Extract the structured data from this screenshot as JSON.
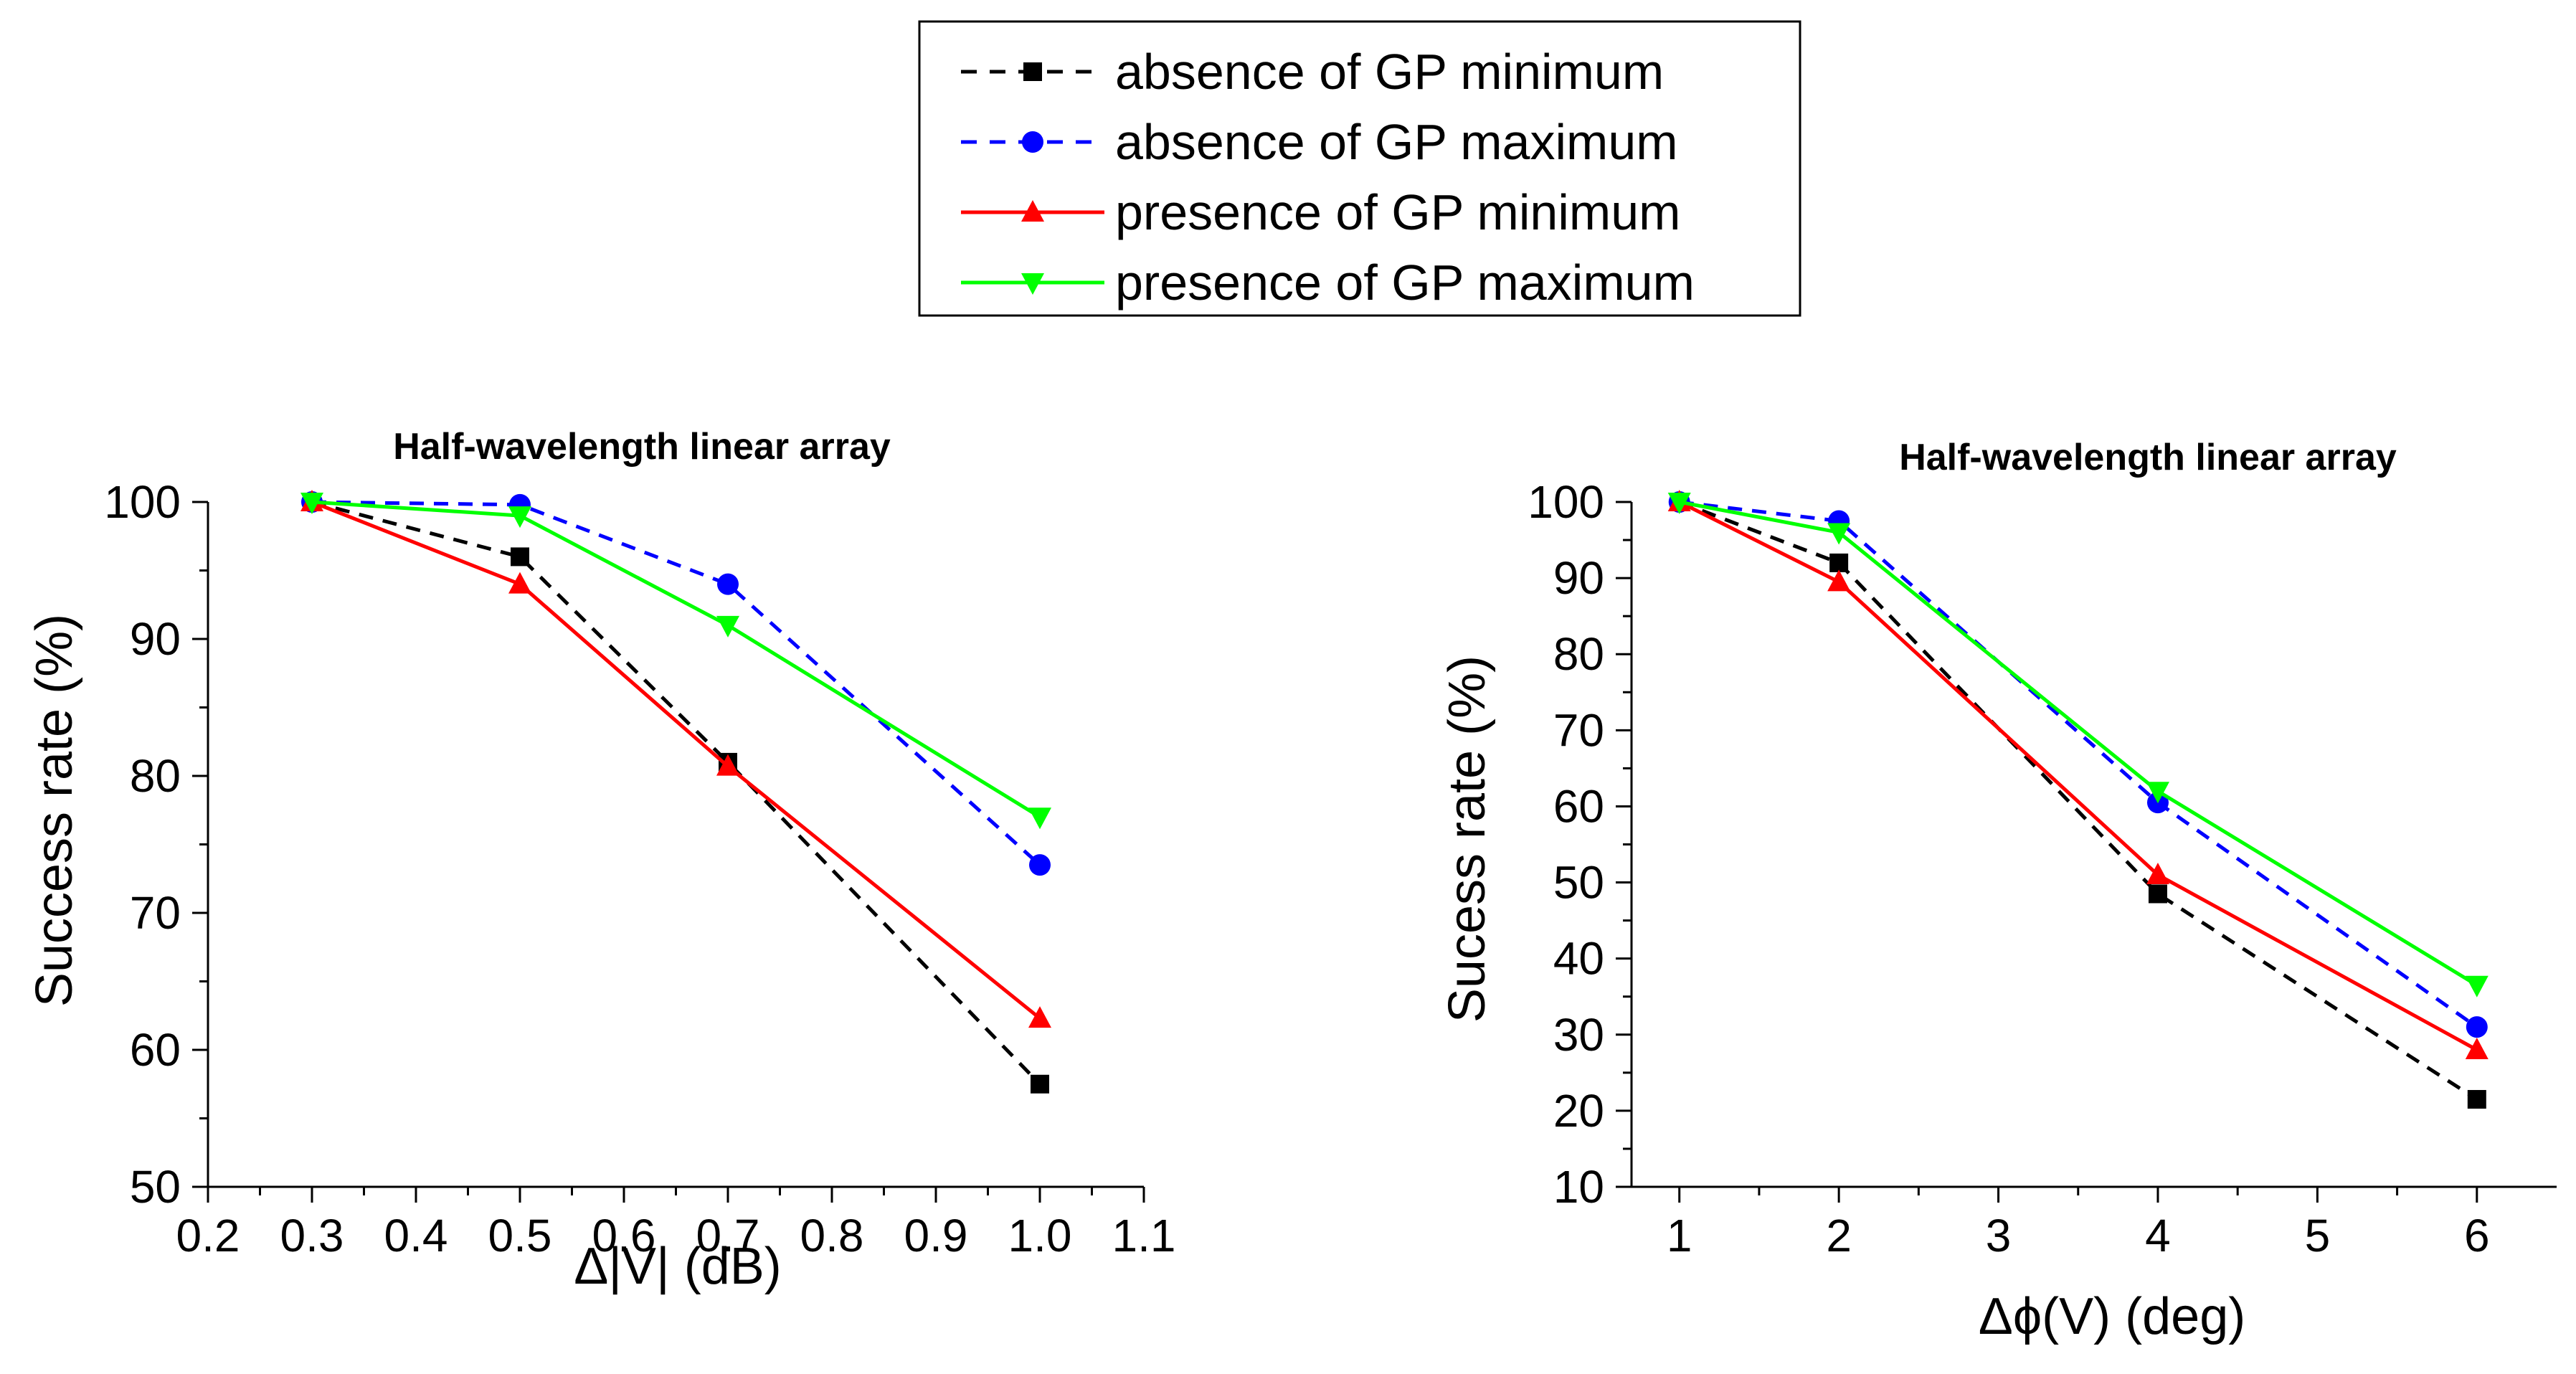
{
  "legend": {
    "entries": [
      {
        "label": "absence of GP minimum",
        "color": "#000000",
        "dash": true,
        "marker": "square"
      },
      {
        "label": "absence of GP maximum",
        "color": "#0000ff",
        "dash": true,
        "marker": "circle"
      },
      {
        "label": "presence of GP minimum",
        "color": "#ff0000",
        "dash": false,
        "marker": "triangle-up"
      },
      {
        "label": "presence of GP maximum",
        "color": "#00ff00",
        "dash": false,
        "marker": "triangle-down"
      }
    ]
  },
  "chart_data": [
    {
      "type": "line",
      "title": "Half-wavelength linear array",
      "xlabel": "Δ|V| (dB)",
      "ylabel": "Success rate (%)",
      "xlim": [
        0.2,
        1.1
      ],
      "ylim": [
        50,
        100
      ],
      "xticks": [
        "0.2",
        "0.3",
        "0.4",
        "0.5",
        "0.6",
        "0.7",
        "0.8",
        "0.9",
        "1.0",
        "1.1"
      ],
      "yticks": [
        "50",
        "60",
        "70",
        "80",
        "90",
        "100"
      ],
      "x": [
        0.3,
        0.5,
        0.7,
        1.0
      ],
      "series": [
        {
          "name": "absence of GP minimum",
          "values": [
            100,
            96,
            81,
            57.5
          ]
        },
        {
          "name": "absence of GP maximum",
          "values": [
            100,
            99.8,
            94,
            73.5
          ]
        },
        {
          "name": "presence of GP minimum",
          "values": [
            100,
            94,
            80.7,
            62.3
          ]
        },
        {
          "name": "presence of GP maximum",
          "values": [
            100,
            99,
            91,
            77
          ]
        }
      ]
    },
    {
      "type": "line",
      "title": "Half-wavelength linear array",
      "xlabel": "Δϕ(V) (deg)",
      "ylabel": "Sucess rate (%)",
      "xlim": [
        0.7,
        6.5
      ],
      "ylim": [
        10,
        100
      ],
      "xticks": [
        "1",
        "2",
        "3",
        "4",
        "5",
        "6"
      ],
      "yticks": [
        "10",
        "20",
        "30",
        "40",
        "50",
        "60",
        "70",
        "80",
        "90",
        "100"
      ],
      "x": [
        1,
        2,
        4,
        6
      ],
      "series": [
        {
          "name": "absence of GP minimum",
          "values": [
            100,
            92,
            48.5,
            21.5
          ]
        },
        {
          "name": "absence of GP maximum",
          "values": [
            100,
            97.5,
            60.5,
            31
          ]
        },
        {
          "name": "presence of GP minimum",
          "values": [
            100,
            89.5,
            51,
            28
          ]
        },
        {
          "name": "presence of GP maximum",
          "values": [
            100,
            96,
            62,
            36.5
          ]
        }
      ]
    }
  ]
}
